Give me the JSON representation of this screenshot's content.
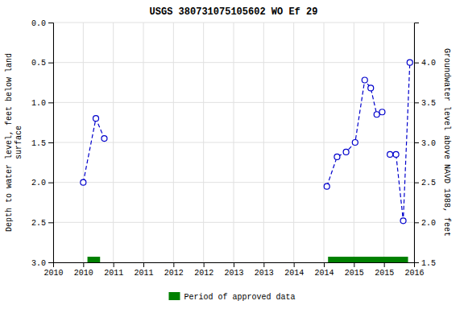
{
  "chart_data": {
    "type": "line",
    "title": "USGS 380731075105602 WO Ef 29",
    "ylabel": "Depth to water level, feet below land\nsurface",
    "y2label": "Groundwater level above NAVD 1988, feet",
    "xlim": [
      2010.0,
      2016.0
    ],
    "ylim": [
      3.0,
      0.0
    ],
    "y2lim": [
      1.5,
      4.5
    ],
    "xticks": [
      2010,
      {
        "value": 2010.5,
        "label": "2010"
      },
      2011,
      {
        "value": 2011.5,
        "label": "2011"
      },
      2012,
      {
        "value": 2012.5,
        "label": "2012"
      },
      2013,
      {
        "value": 2013.5,
        "label": "2013"
      },
      2014,
      {
        "value": 2014.5,
        "label": "2014"
      },
      2015,
      {
        "value": 2015.5,
        "label": "2015"
      },
      2016
    ],
    "yticks": [
      {
        "value": 0.0,
        "label": "0.0"
      },
      0.5,
      {
        "value": 1.0,
        "label": "1.0"
      },
      1.5,
      {
        "value": 2.0,
        "label": "2.0"
      },
      2.5,
      {
        "value": 3.0,
        "label": "3.0"
      }
    ],
    "y2ticks": [
      1.5,
      {
        "value": 2.0,
        "label": "2.0"
      },
      2.5,
      {
        "value": 3.0,
        "label": "3.0"
      },
      3.5,
      {
        "value": 4.0,
        "label": "4.0"
      }
    ],
    "grid": true,
    "legend": "bottom",
    "series": [
      {
        "type": "line",
        "color": "#0000cc",
        "marker": "circle",
        "line_style": "dashed",
        "x": [
          2010.5,
          2010.71,
          2010.85,
          null,
          2014.55,
          2014.72,
          2014.87,
          2015.02,
          2015.18,
          2015.28,
          2015.38,
          2015.47,
          null,
          2015.6,
          2015.7,
          2015.82,
          2015.93
        ],
        "values": [
          2.0,
          1.2,
          1.45,
          null,
          2.05,
          1.68,
          1.62,
          1.5,
          0.72,
          0.82,
          1.15,
          1.12,
          null,
          1.65,
          1.65,
          2.48,
          0.5
        ]
      },
      {
        "name": "Period of approved data",
        "type": "span",
        "color": "#008000",
        "x_start": [
          2010.57,
          2014.57
        ],
        "x_end": [
          2010.78,
          2015.9
        ],
        "y_bottom": 2.93,
        "y_top": 3.0
      }
    ]
  }
}
